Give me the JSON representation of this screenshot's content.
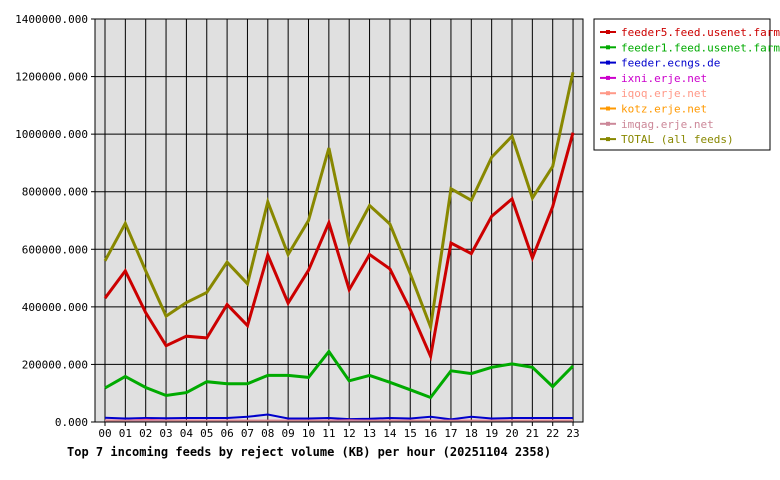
{
  "chart_data": {
    "type": "line",
    "title": "Top 7 incoming feeds by reject volume (KB) per hour (20251104 2358)",
    "xlabel": "",
    "ylabel": "",
    "categories": [
      "00",
      "01",
      "02",
      "03",
      "04",
      "05",
      "06",
      "07",
      "08",
      "09",
      "10",
      "11",
      "12",
      "13",
      "14",
      "15",
      "16",
      "17",
      "18",
      "19",
      "20",
      "21",
      "22",
      "23"
    ],
    "ylim": [
      0,
      1400000
    ],
    "yticks": [
      "0.000",
      "200000.000",
      "400000.000",
      "600000.000",
      "800000.000",
      "1000000.000",
      "1200000.000",
      "1400000.000"
    ],
    "ytick_values": [
      0,
      200000,
      400000,
      600000,
      800000,
      1000000,
      1200000,
      1400000
    ],
    "grid": true,
    "legend_position": "right",
    "colors": {
      "plot_background": "#e0e0e0",
      "grid": "#000000"
    },
    "series": [
      {
        "name": "feeder5.feed.usenet.farm",
        "color": "#cc0000",
        "values": [
          430000,
          525000,
          380000,
          265000,
          298000,
          292000,
          408000,
          335000,
          580000,
          413000,
          527000,
          692000,
          460000,
          582000,
          532000,
          390000,
          228000,
          622000,
          585000,
          715000,
          775000,
          570000,
          748000,
          1005000
        ]
      },
      {
        "name": "feeder1.feed.usenet.farm",
        "color": "#00aa00",
        "values": [
          118000,
          158000,
          120000,
          92000,
          102000,
          140000,
          133000,
          133000,
          162000,
          162000,
          155000,
          245000,
          143000,
          162000,
          138000,
          112000,
          85000,
          178000,
          168000,
          190000,
          202000,
          190000,
          123000,
          195000
        ]
      },
      {
        "name": "feeder.ecngs.de",
        "color": "#0000cc",
        "values": [
          15000,
          12000,
          14000,
          13000,
          14000,
          14000,
          14000,
          18000,
          26000,
          12000,
          12000,
          14000,
          10000,
          11000,
          14000,
          12000,
          18000,
          9000,
          18000,
          12000,
          14000,
          14000,
          14000,
          14000
        ]
      },
      {
        "name": "ixni.erje.net",
        "color": "#cc00cc",
        "values": [
          5000,
          4000,
          8000,
          5000,
          5000,
          4000,
          4000,
          4000,
          4000,
          4000,
          4000,
          4000,
          6000,
          4000,
          4000,
          4000,
          4000,
          4000,
          4000,
          4000,
          4000,
          4000,
          4000,
          4000
        ]
      },
      {
        "name": "iqoq.erje.net",
        "color": "#ff9988",
        "values": [
          4000,
          4000,
          6000,
          4000,
          4000,
          4000,
          4000,
          4000,
          4000,
          4000,
          4000,
          4000,
          5000,
          4000,
          4000,
          4000,
          4000,
          4000,
          4000,
          4000,
          4000,
          4000,
          4000,
          4000
        ]
      },
      {
        "name": "kotz.erje.net",
        "color": "#ff9900",
        "values": [
          3000,
          3000,
          4000,
          3000,
          3000,
          3000,
          3000,
          3000,
          3000,
          3000,
          3000,
          3000,
          4000,
          3000,
          3000,
          3000,
          3000,
          3000,
          3000,
          3000,
          3000,
          3000,
          3000,
          3000
        ]
      },
      {
        "name": "imqag.erje.net",
        "color": "#cc8899",
        "values": [
          3000,
          3000,
          4000,
          3000,
          3000,
          3000,
          3000,
          3000,
          3000,
          3000,
          3000,
          3000,
          4000,
          3000,
          3000,
          3000,
          3000,
          3000,
          3000,
          3000,
          3000,
          3000,
          3000,
          3000
        ]
      },
      {
        "name": "TOTAL (all feeds)",
        "color": "#888800",
        "values": [
          560000,
          690000,
          525000,
          368000,
          415000,
          450000,
          555000,
          480000,
          765000,
          582000,
          700000,
          952000,
          620000,
          752000,
          688000,
          515000,
          330000,
          810000,
          770000,
          920000,
          993000,
          778000,
          888000,
          1215000
        ]
      }
    ]
  }
}
